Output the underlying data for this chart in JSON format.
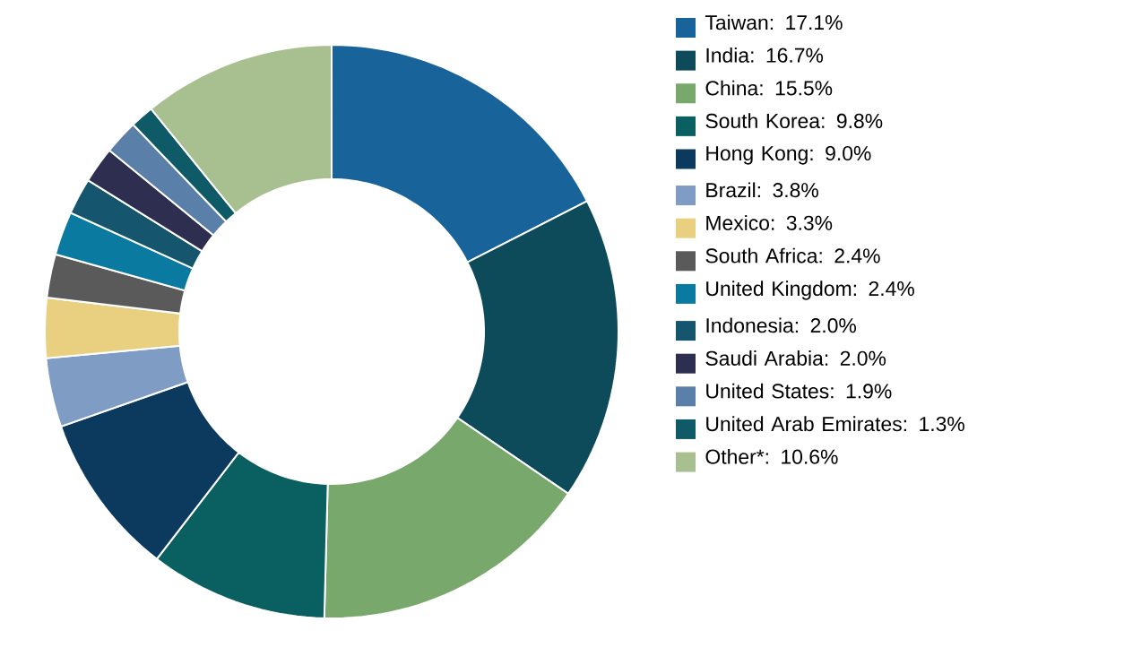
{
  "chart_data": {
    "type": "donut",
    "legend": "right",
    "categories": [
      "Taiwan: 17.1%",
      "India: 16.7%",
      "China: 15.5%",
      "South Korea: 9.8%",
      "Hong Kong: 9.0%",
      "Brazil: 3.8%",
      "Mexico: 3.3%",
      "South Africa: 2.4%",
      "United Kingdom: 2.4%",
      "Indonesia: 2.0%",
      "Saudi Arabia: 2.0%",
      "United States: 1.9%",
      "United Arab Emirates: 1.3%",
      "Other*: 10.6%"
    ],
    "values": [
      17.1,
      16.7,
      15.5,
      9.8,
      9.0,
      3.8,
      3.3,
      2.4,
      2.4,
      2.0,
      2.0,
      1.9,
      1.3,
      10.6
    ],
    "colors": [
      "#17639a",
      "#0d4a5a",
      "#78a86c",
      "#0a6060",
      "#0c3a5e",
      "#7f9cc4",
      "#e8d080",
      "#5a5a5a",
      "#0a7aa0",
      "#15566e",
      "#2e2e50",
      "#5a7fa8",
      "#0e5a66",
      "#a8c090"
    ]
  }
}
